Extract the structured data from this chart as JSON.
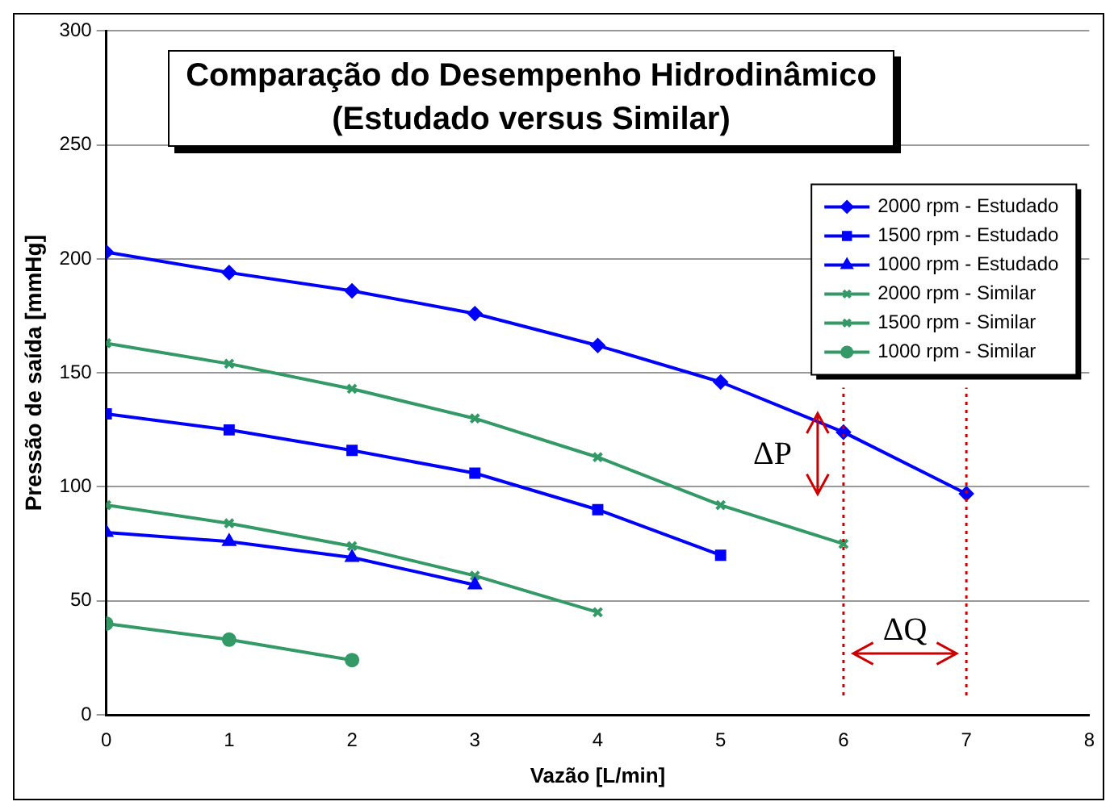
{
  "chart_data": {
    "type": "line",
    "title": "Comparação do Desempenho Hidrodinâmico (Estudado versus Similar)",
    "xlabel": "Vazão [L/min]",
    "ylabel": "Pressão de saída [mmHg]",
    "xlim": [
      0,
      8
    ],
    "xticks": [
      0,
      1,
      2,
      3,
      4,
      5,
      6,
      7,
      8
    ],
    "ylim": [
      0,
      300
    ],
    "yticks": [
      0,
      50,
      100,
      150,
      200,
      250,
      300
    ],
    "grid": "y",
    "legend": "top right",
    "line_style": "solid",
    "series": [
      {
        "name": "2000 rpm - Estudado",
        "color": "#0000ff",
        "marker": "diamond",
        "x": [
          0,
          1,
          2,
          3,
          4,
          5,
          6,
          7
        ],
        "values": [
          203,
          194,
          186,
          176,
          162,
          146,
          124,
          97
        ]
      },
      {
        "name": "1500 rpm - Estudado",
        "color": "#0000ff",
        "marker": "square",
        "x": [
          0,
          1,
          2,
          3,
          4,
          5
        ],
        "values": [
          132,
          125,
          116,
          106,
          90,
          70
        ]
      },
      {
        "name": "1000 rpm - Estudado",
        "color": "#0000ff",
        "marker": "triangle",
        "x": [
          0,
          1,
          2,
          3
        ],
        "values": [
          80,
          76,
          69,
          57
        ]
      },
      {
        "name": "2000 rpm - Similar",
        "color": "#339966",
        "marker": "cross",
        "x": [
          0,
          1,
          2,
          3,
          4,
          5,
          6
        ],
        "values": [
          163,
          154,
          143,
          130,
          113,
          92,
          75
        ]
      },
      {
        "name": "1500 rpm - Similar",
        "color": "#339966",
        "marker": "cross",
        "x": [
          0,
          1,
          2,
          3,
          4
        ],
        "values": [
          92,
          84,
          74,
          61,
          45
        ]
      },
      {
        "name": "1000 rpm - Similar",
        "color": "#339966",
        "marker": "circle",
        "x": [
          0,
          1,
          2
        ],
        "values": [
          40,
          33,
          24
        ]
      }
    ],
    "ref_lines": [
      {
        "axis": "x",
        "value": 6,
        "color": "#cc0000",
        "line_style": "dotted"
      },
      {
        "axis": "x",
        "value": 7,
        "color": "#cc0000",
        "line_style": "dotted"
      }
    ],
    "annotations": [
      "ΔP",
      "ΔQ"
    ]
  }
}
